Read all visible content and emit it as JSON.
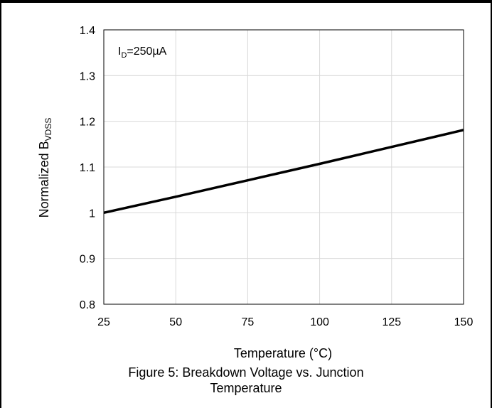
{
  "chart_data": {
    "type": "line",
    "title": "",
    "xlabel": "Temperature (°C)",
    "ylabel_main": "Normalized B",
    "ylabel_sub": "VDSS",
    "xlim": [
      25,
      150
    ],
    "ylim": [
      0.8,
      1.4
    ],
    "xticks": [
      25,
      50,
      75,
      100,
      125,
      150
    ],
    "yticks": [
      "0.8",
      "0.9",
      "1",
      "1.1",
      "1.2",
      "1.3",
      "1.4"
    ],
    "grid": true,
    "annotation": {
      "main": "I",
      "sub": "D",
      "rest": "=250µA"
    },
    "series": [
      {
        "x": [
          25,
          50,
          75,
          100,
          125,
          150
        ],
        "y": [
          1.0,
          1.035,
          1.071,
          1.107,
          1.144,
          1.181
        ],
        "color": "#000000"
      }
    ]
  },
  "caption": {
    "line1": "Figure 5: Breakdown Voltage vs. Junction",
    "line2": "Temperature"
  }
}
